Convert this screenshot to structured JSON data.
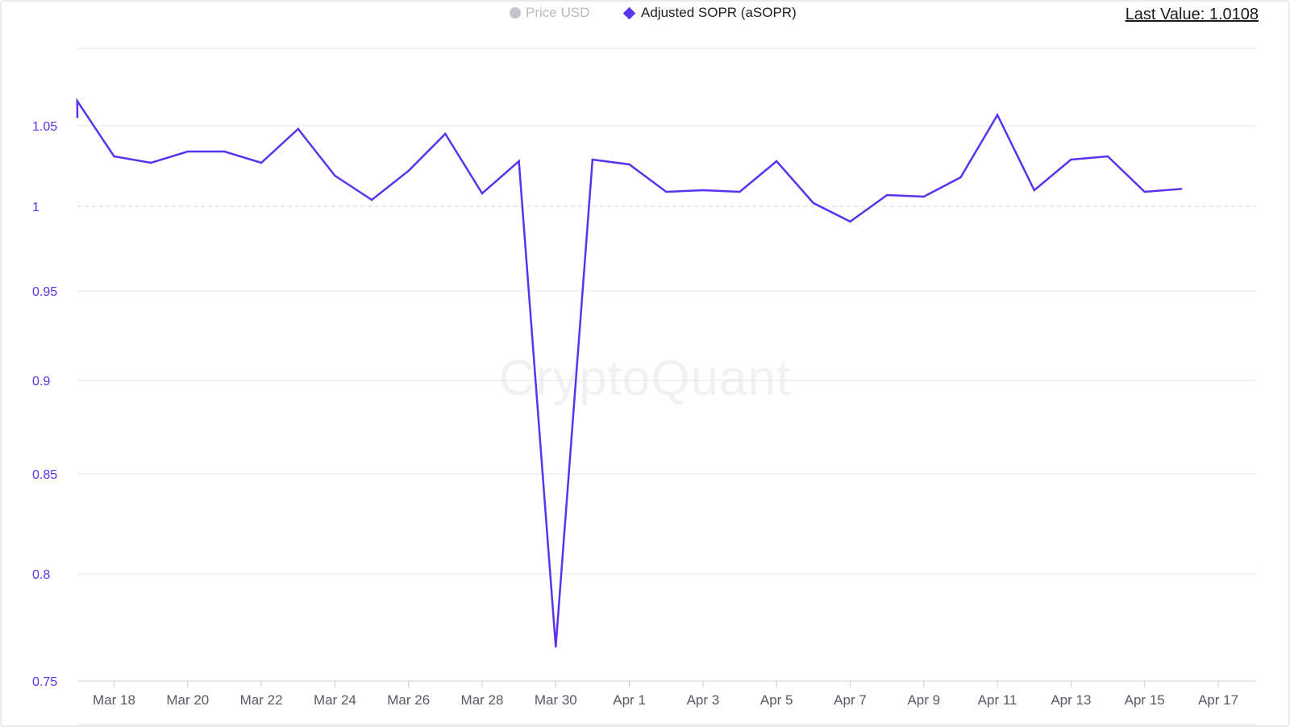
{
  "legend": {
    "price_label": "Price USD",
    "price_icon": "circle-icon",
    "sopr_label": "Adjusted SOPR (aSOPR)",
    "sopr_icon": "diamond-icon"
  },
  "last_value": {
    "label": "Last Value: 1.0108"
  },
  "watermark": "CryptoQuant",
  "colors": {
    "series": "#5a32f0",
    "price_legend": "#c4c4ce",
    "grid": "#e6e6ea",
    "baseline": "#cfcfd6"
  },
  "chart_data": {
    "type": "line",
    "title": "",
    "xlabel": "",
    "ylabel": "",
    "x_ticks": [
      "Mar 18",
      "Mar 20",
      "Mar 22",
      "Mar 24",
      "Mar 26",
      "Mar 28",
      "Mar 30",
      "Apr 1",
      "Apr 3",
      "Apr 5",
      "Apr 7",
      "Apr 9",
      "Apr 11",
      "Apr 13",
      "Apr 15",
      "Apr 17"
    ],
    "y_ticks": [
      0.75,
      0.8,
      0.85,
      0.9,
      0.95,
      1,
      1.05
    ],
    "ylim": [
      0.75,
      1.075
    ],
    "reference_line": 1,
    "grid": true,
    "legend_position": "top",
    "series": [
      {
        "name": "Adjusted SOPR (aSOPR)",
        "x": [
          "Mar 17",
          "Mar 18",
          "Mar 19",
          "Mar 20",
          "Mar 21",
          "Mar 22",
          "Mar 23",
          "Mar 24",
          "Mar 25",
          "Mar 26",
          "Mar 27",
          "Mar 28",
          "Mar 29",
          "Mar 30",
          "Mar 31",
          "Apr 1",
          "Apr 2",
          "Apr 3",
          "Apr 4",
          "Apr 5",
          "Apr 6",
          "Apr 7",
          "Apr 8",
          "Apr 9",
          "Apr 10",
          "Apr 11",
          "Apr 12",
          "Apr 13",
          "Apr 14",
          "Apr 15",
          "Apr 16"
        ],
        "values": [
          1.066,
          1.031,
          1.027,
          1.034,
          1.034,
          1.027,
          1.048,
          1.019,
          1.004,
          1.022,
          1.045,
          1.008,
          1.028,
          0.766,
          1.029,
          1.026,
          1.009,
          1.01,
          1.009,
          1.028,
          1.002,
          0.991,
          1.007,
          1.006,
          1.018,
          1.057,
          1.01,
          1.029,
          1.031,
          1.009,
          1.0108
        ]
      }
    ]
  }
}
